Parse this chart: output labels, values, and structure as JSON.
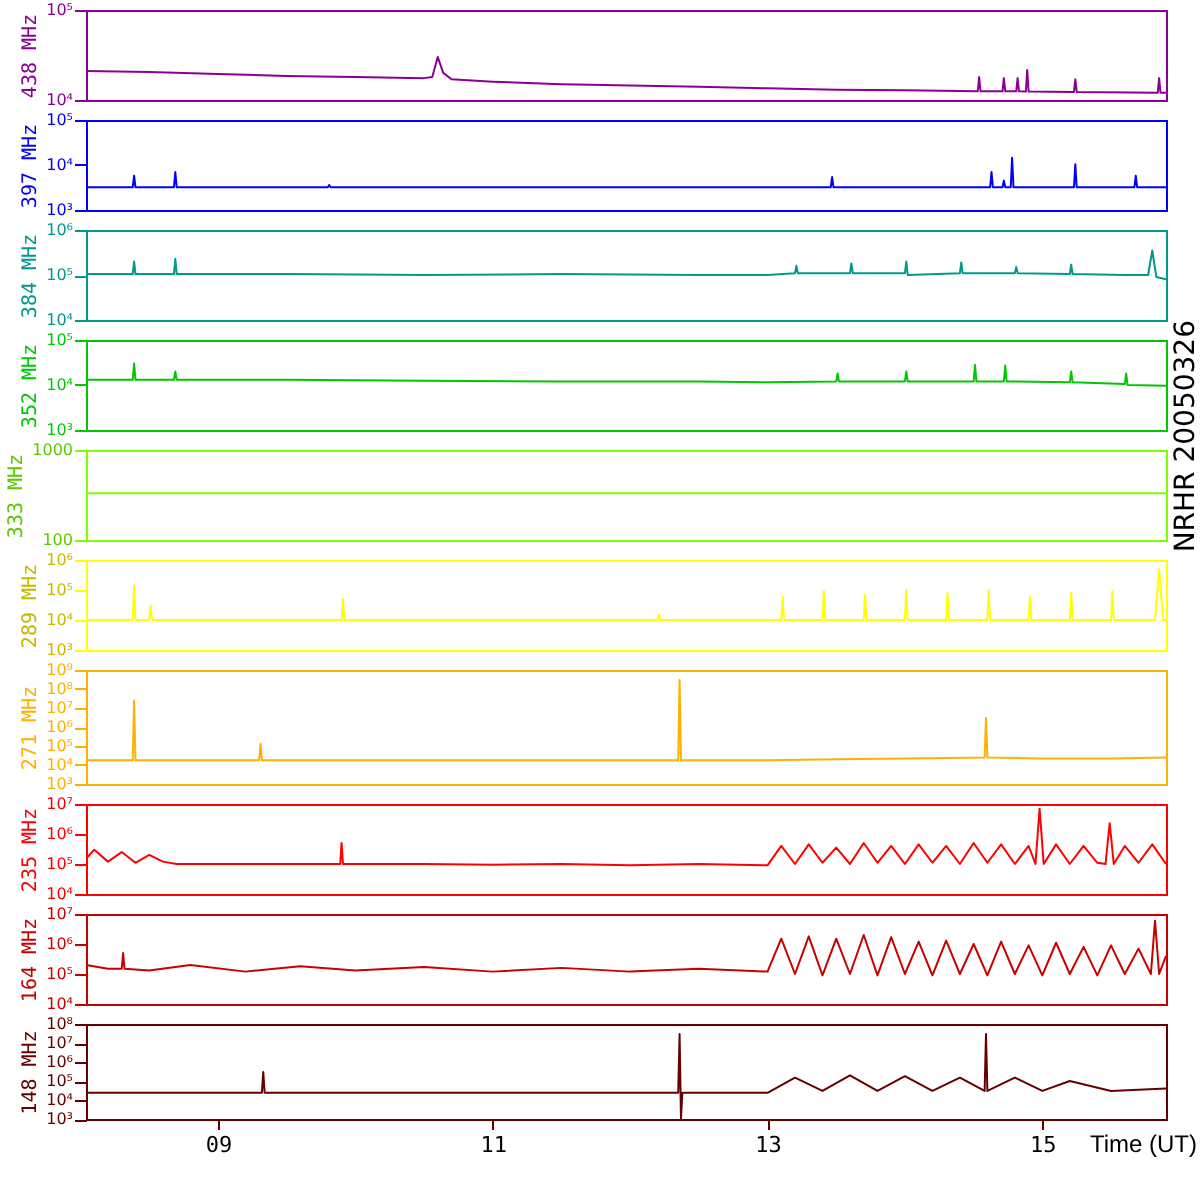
{
  "chart_data": [
    {
      "type": "line",
      "ylabel": "438 MHz",
      "log": true,
      "tick_labels": "y",
      "xlim": [
        8.04,
        15.9
      ],
      "ylim": [
        10000,
        100000
      ],
      "yticks": [
        {
          "value": 10000,
          "label": "10⁴"
        },
        {
          "value": 100000,
          "label": "10⁵"
        }
      ],
      "x": [
        8.04,
        8.5,
        9.0,
        9.5,
        10.0,
        10.5,
        10.56,
        10.6,
        10.64,
        10.7,
        11.0,
        11.5,
        12.0,
        12.5,
        13.0,
        13.5,
        14.0,
        14.53,
        14.54,
        14.55,
        14.71,
        14.72,
        14.73,
        14.81,
        14.82,
        14.83,
        14.88,
        14.89,
        14.9,
        15.23,
        15.24,
        15.25,
        15.84,
        15.85,
        15.86,
        15.9
      ],
      "series": [
        {
          "color": "#8a0096",
          "values": [
            21000,
            20500,
            19500,
            18500,
            18000,
            17500,
            18000,
            30000,
            20000,
            17000,
            16000,
            15000,
            14500,
            14000,
            13500,
            13000,
            12800,
            12500,
            18000,
            12500,
            12500,
            17500,
            12500,
            12500,
            17500,
            12500,
            12400,
            21500,
            12400,
            12300,
            17000,
            12300,
            12000,
            17500,
            12000,
            12000
          ]
        }
      ]
    },
    {
      "type": "line",
      "ylabel": "397 MHz",
      "log": true,
      "tick_labels": "y",
      "xlim": [
        8.04,
        15.9
      ],
      "ylim": [
        1000,
        100000
      ],
      "yticks": [
        {
          "value": 1000,
          "label": "10³"
        },
        {
          "value": 10000,
          "label": "10⁴"
        },
        {
          "value": 100000,
          "label": "10⁵"
        }
      ],
      "x": [
        8.04,
        8.38,
        8.39,
        8.4,
        8.68,
        8.69,
        8.7,
        9.8,
        9.81,
        9.82,
        13.46,
        13.47,
        13.48,
        14.62,
        14.63,
        14.64,
        14.71,
        14.72,
        14.73,
        14.77,
        14.78,
        14.79,
        15.23,
        15.24,
        15.25,
        15.67,
        15.68,
        15.69,
        15.9
      ],
      "series": [
        {
          "color": "#0000ff",
          "values": [
            3200,
            3200,
            5800,
            3200,
            3200,
            7000,
            3200,
            3200,
            3600,
            3200,
            3200,
            5400,
            3200,
            3200,
            7000,
            3200,
            3200,
            4500,
            3200,
            3200,
            14500,
            3200,
            3200,
            10400,
            3200,
            3200,
            5800,
            3200,
            3200
          ]
        }
      ]
    },
    {
      "type": "line",
      "ylabel": "384 MHz",
      "log": true,
      "tick_labels": "y",
      "xlim": [
        8.04,
        15.9
      ],
      "ylim": [
        10000,
        1000000
      ],
      "yticks": [
        {
          "value": 10000,
          "label": "10⁴"
        },
        {
          "value": 100000,
          "label": "10⁵"
        },
        {
          "value": 1000000,
          "label": "10⁶"
        }
      ],
      "x": [
        8.04,
        8.38,
        8.39,
        8.4,
        8.68,
        8.69,
        8.7,
        9.5,
        10.5,
        11.5,
        12.5,
        13.0,
        13.2,
        13.21,
        13.22,
        13.6,
        13.61,
        13.62,
        14.0,
        14.01,
        14.02,
        14.4,
        14.41,
        14.42,
        14.8,
        14.81,
        14.82,
        15.2,
        15.21,
        15.22,
        15.6,
        15.77,
        15.8,
        15.83,
        15.9
      ],
      "series": [
        {
          "color": "#00998a",
          "values": [
            105000,
            105000,
            200000,
            105000,
            105000,
            230000,
            105000,
            105000,
            100000,
            105000,
            100000,
            100000,
            110000,
            160000,
            110000,
            110000,
            180000,
            110000,
            110000,
            200000,
            100000,
            110000,
            190000,
            110000,
            110000,
            150000,
            110000,
            105000,
            170000,
            105000,
            100000,
            100000,
            350000,
            90000,
            80000
          ]
        }
      ]
    },
    {
      "type": "line",
      "ylabel": "352 MHz",
      "log": true,
      "tick_labels": "y",
      "xlim": [
        8.04,
        15.9
      ],
      "ylim": [
        1000,
        100000
      ],
      "yticks": [
        {
          "value": 1000,
          "label": "10³"
        },
        {
          "value": 10000,
          "label": "10⁴"
        },
        {
          "value": 100000,
          "label": "10⁵"
        }
      ],
      "x": [
        8.04,
        8.38,
        8.39,
        8.4,
        8.68,
        8.69,
        8.7,
        9.5,
        10.5,
        11.5,
        12.5,
        13.0,
        13.5,
        13.51,
        13.52,
        14.0,
        14.01,
        14.02,
        14.5,
        14.51,
        14.52,
        14.72,
        14.73,
        14.74,
        15.2,
        15.21,
        15.22,
        15.6,
        15.61,
        15.62,
        15.9
      ],
      "series": [
        {
          "color": "#00c800",
          "values": [
            13000,
            13000,
            30000,
            13000,
            13000,
            20000,
            13000,
            13000,
            12500,
            12000,
            12000,
            11500,
            12000,
            18000,
            12000,
            12000,
            20000,
            12000,
            12000,
            28000,
            12000,
            12000,
            27000,
            12000,
            11500,
            20000,
            11500,
            10500,
            18000,
            10000,
            9600
          ]
        }
      ]
    },
    {
      "type": "line",
      "ylabel": "333 MHz",
      "log": true,
      "tick_labels": "y",
      "xlim": [
        8.04,
        15.9
      ],
      "ylim": [
        100,
        1000
      ],
      "yticks": [
        100,
        1000
      ],
      "annotations": [
        "NRHR 20050326"
      ],
      "x": [
        8.04,
        15.9
      ],
      "series": [
        {
          "color": "#80ff00",
          "values": [
            330,
            330
          ]
        }
      ]
    },
    {
      "type": "line",
      "ylabel": "289 MHz",
      "log": true,
      "tick_labels": "y",
      "xlim": [
        8.04,
        15.9
      ],
      "ylim": [
        1000,
        1000000
      ],
      "yticks": [
        {
          "value": 1000,
          "label": "10³"
        },
        {
          "value": 10000,
          "label": "10⁴"
        },
        {
          "value": 100000,
          "label": "10⁵"
        },
        {
          "value": 1000000,
          "label": "10⁶"
        }
      ],
      "x": [
        8.04,
        8.38,
        8.39,
        8.4,
        8.5,
        8.51,
        8.52,
        9.9,
        9.91,
        9.92,
        12.2,
        12.21,
        12.22,
        13.1,
        13.11,
        13.12,
        13.4,
        13.41,
        13.42,
        13.7,
        13.71,
        13.72,
        14.0,
        14.01,
        14.02,
        14.3,
        14.31,
        14.32,
        14.6,
        14.61,
        14.62,
        14.9,
        14.91,
        14.92,
        15.2,
        15.21,
        15.22,
        15.5,
        15.51,
        15.52,
        15.82,
        15.85,
        15.88,
        15.9
      ],
      "series": [
        {
          "color": "#ffff00",
          "values": [
            10000,
            10000,
            140000,
            10000,
            10000,
            30000,
            10000,
            10000,
            50000,
            10000,
            10000,
            15000,
            10000,
            10000,
            60000,
            10000,
            10000,
            90000,
            10000,
            10000,
            70000,
            10000,
            10000,
            100000,
            10000,
            10000,
            80000,
            10000,
            10000,
            100000,
            10000,
            10000,
            60000,
            10000,
            10000,
            80000,
            10000,
            10000,
            90000,
            10000,
            10000,
            500000,
            10000,
            10000
          ]
        }
      ]
    },
    {
      "type": "line",
      "ylabel": "271 MHz",
      "log": true,
      "tick_labels": "y",
      "xlim": [
        8.04,
        15.9
      ],
      "ylim": [
        1000,
        1000000000
      ],
      "yticks": [
        {
          "value": 1000,
          "label": "10³"
        },
        {
          "value": 10000,
          "label": "10⁴"
        },
        {
          "value": 100000,
          "label": "10⁵"
        },
        {
          "value": 1000000,
          "label": "10⁶"
        },
        {
          "value": 10000000,
          "label": "10⁷"
        },
        {
          "value": 100000000,
          "label": "10⁸"
        },
        {
          "value": 1000000000,
          "label": "10⁹"
        }
      ],
      "x": [
        8.04,
        8.38,
        8.39,
        8.4,
        9.3,
        9.31,
        9.32,
        12.35,
        12.36,
        12.37,
        13.0,
        13.5,
        14.0,
        14.58,
        14.59,
        14.6,
        15.0,
        15.5,
        15.9
      ],
      "series": [
        {
          "color": "#ffb000",
          "values": [
            18000,
            18000,
            25000000,
            18000,
            18000,
            130000,
            18000,
            18000,
            300000000,
            18000,
            18000,
            20000,
            22000,
            25000,
            3000000,
            25000,
            22000,
            22000,
            25000
          ]
        }
      ]
    },
    {
      "type": "line",
      "ylabel": "235 MHz",
      "log": true,
      "tick_labels": "y",
      "xlim": [
        8.04,
        15.9
      ],
      "ylim": [
        10000,
        10000000
      ],
      "yticks": [
        {
          "value": 10000,
          "label": "10⁴"
        },
        {
          "value": 100000,
          "label": "10⁵"
        },
        {
          "value": 1000000,
          "label": "10⁶"
        },
        {
          "value": 10000000,
          "label": "10⁷"
        }
      ],
      "x": [
        8.04,
        8.1,
        8.2,
        8.3,
        8.4,
        8.5,
        8.6,
        8.7,
        9.0,
        9.5,
        9.89,
        9.9,
        9.91,
        10.5,
        11.0,
        11.5,
        12.0,
        12.5,
        13.0,
        13.1,
        13.2,
        13.3,
        13.4,
        13.5,
        13.6,
        13.7,
        13.8,
        13.9,
        14.0,
        14.1,
        14.2,
        14.3,
        14.4,
        14.5,
        14.6,
        14.7,
        14.8,
        14.9,
        14.95,
        14.98,
        15.01,
        15.1,
        15.2,
        15.3,
        15.4,
        15.46,
        15.49,
        15.52,
        15.6,
        15.7,
        15.8,
        15.9
      ],
      "series": [
        {
          "color": "#ff0000",
          "values": [
            150000,
            300000,
            120000,
            250000,
            110000,
            200000,
            120000,
            100000,
            100000,
            100000,
            100000,
            500000,
            100000,
            100000,
            95000,
            100000,
            90000,
            100000,
            90000,
            400000,
            100000,
            450000,
            110000,
            350000,
            100000,
            500000,
            110000,
            400000,
            100000,
            450000,
            110000,
            400000,
            100000,
            500000,
            110000,
            450000,
            100000,
            400000,
            100000,
            7000000,
            100000,
            450000,
            100000,
            400000,
            110000,
            100000,
            2300000,
            100000,
            400000,
            110000,
            450000,
            100000
          ]
        }
      ]
    },
    {
      "type": "line",
      "ylabel": "164 MHz",
      "log": true,
      "tick_labels": "y",
      "xlim": [
        8.04,
        15.9
      ],
      "ylim": [
        10000,
        10000000
      ],
      "yticks": [
        {
          "value": 10000,
          "label": "10⁴"
        },
        {
          "value": 100000,
          "label": "10⁵"
        },
        {
          "value": 1000000,
          "label": "10⁶"
        },
        {
          "value": 10000000,
          "label": "10⁷"
        }
      ],
      "x": [
        8.04,
        8.2,
        8.3,
        8.31,
        8.32,
        8.5,
        8.8,
        9.2,
        9.6,
        10.0,
        10.5,
        11.0,
        11.5,
        12.0,
        12.5,
        13.0,
        13.1,
        13.2,
        13.3,
        13.4,
        13.5,
        13.6,
        13.7,
        13.8,
        13.9,
        14.0,
        14.1,
        14.2,
        14.3,
        14.4,
        14.5,
        14.6,
        14.7,
        14.8,
        14.9,
        15.0,
        15.1,
        15.2,
        15.3,
        15.4,
        15.5,
        15.6,
        15.7,
        15.79,
        15.82,
        15.85,
        15.9
      ],
      "series": [
        {
          "color": "#c80000",
          "values": [
            200000,
            150000,
            150000,
            500000,
            150000,
            130000,
            200000,
            120000,
            180000,
            130000,
            170000,
            120000,
            160000,
            120000,
            150000,
            120000,
            1500000,
            100000,
            1800000,
            90000,
            1500000,
            100000,
            2000000,
            90000,
            1700000,
            100000,
            1200000,
            90000,
            1300000,
            100000,
            1000000,
            90000,
            1200000,
            100000,
            900000,
            90000,
            1100000,
            100000,
            800000,
            90000,
            900000,
            100000,
            700000,
            100000,
            6000000,
            100000,
            400000
          ]
        }
      ]
    },
    {
      "type": "line",
      "ylabel": "148 MHz",
      "xlabel": "Time (UT)",
      "log": true,
      "xlim": [
        8.04,
        15.9
      ],
      "xticks": [
        {
          "value": 9,
          "label": "09"
        },
        {
          "value": 11,
          "label": "11"
        },
        {
          "value": 13,
          "label": "13"
        },
        {
          "value": 15,
          "label": "15"
        }
      ],
      "ylim": [
        1000,
        100000000
      ],
      "yticks": [
        {
          "value": 1000,
          "label": "10³"
        },
        {
          "value": 10000,
          "label": "10⁴"
        },
        {
          "value": 100000,
          "label": "10⁵"
        },
        {
          "value": 1000000,
          "label": "10⁶"
        },
        {
          "value": 10000000,
          "label": "10⁷"
        },
        {
          "value": 100000000,
          "label": "10⁸"
        }
      ],
      "x": [
        8.04,
        8.5,
        9.32,
        9.33,
        9.34,
        10.0,
        11.0,
        12.0,
        12.35,
        12.36,
        12.37,
        12.38,
        13.0,
        13.2,
        13.4,
        13.6,
        13.8,
        14.0,
        14.2,
        14.4,
        14.58,
        14.59,
        14.6,
        14.8,
        15.0,
        15.2,
        15.5,
        15.9
      ],
      "series": [
        {
          "color": "#640000",
          "values": [
            24000,
            24000,
            24000,
            300000,
            24000,
            24000,
            24000,
            24000,
            24000,
            30000000,
            1000,
            24000,
            24000,
            150000,
            30000,
            200000,
            30000,
            180000,
            30000,
            150000,
            30000,
            30000000,
            30000,
            150000,
            30000,
            100000,
            30000,
            40000
          ]
        }
      ]
    }
  ]
}
